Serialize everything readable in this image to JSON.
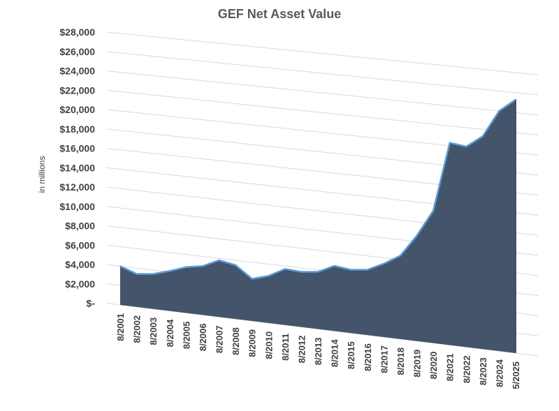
{
  "chart_data": {
    "type": "area",
    "title": "GEF Net Asset Value",
    "ylabel": "in millions",
    "xlabel": "",
    "ylim": [
      0,
      28000
    ],
    "ytick_labels": [
      "$-",
      "$2,000",
      "$4,000",
      "$6,000",
      "$8,000",
      "$10,000",
      "$12,000",
      "$14,000",
      "$16,000",
      "$18,000",
      "$20,000",
      "$22,000",
      "$24,000",
      "$26,000",
      "$28,000"
    ],
    "categories": [
      "8/2001",
      "8/2002",
      "8/2003",
      "8/2004",
      "8/2005",
      "8/2006",
      "8/2007",
      "8/2008",
      "8/2009",
      "8/2010",
      "8/2011",
      "8/2012",
      "8/2013",
      "8/2014",
      "8/2015",
      "8/2016",
      "8/2017",
      "8/2018",
      "8/2019",
      "8/2020",
      "8/2021",
      "8/2022",
      "8/2023",
      "8/2024",
      "5/2025"
    ],
    "values": [
      4000,
      3400,
      3600,
      4100,
      4700,
      5000,
      5800,
      5500,
      4300,
      4800,
      5700,
      5600,
      5800,
      6600,
      6400,
      6600,
      7400,
      8400,
      10600,
      13300,
      20300,
      20100,
      21300,
      24000,
      25300
    ],
    "grid": true,
    "colors": {
      "fill": "#44546a",
      "edge": "#5b9bd5",
      "grid": "#d9d9d9"
    }
  }
}
